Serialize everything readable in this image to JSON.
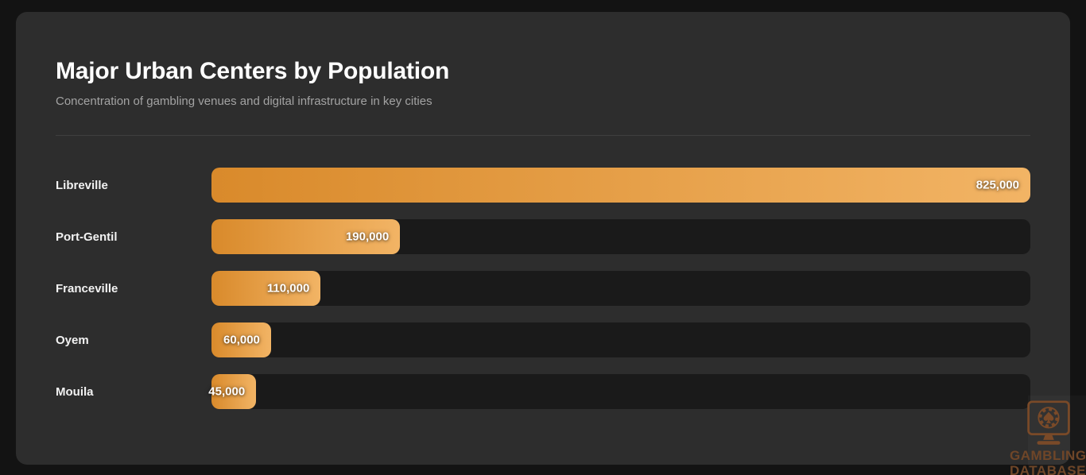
{
  "chart": {
    "title": "Major Urban Centers by Population",
    "subtitle": "Concentration of gambling venues and digital infrastructure in key cities"
  },
  "chart_data": {
    "type": "bar",
    "orientation": "horizontal",
    "categories": [
      "Libreville",
      "Port-Gentil",
      "Franceville",
      "Oyem",
      "Mouila"
    ],
    "values": [
      825000,
      190000,
      110000,
      60000,
      45000
    ],
    "value_labels": [
      "825,000",
      "190,000",
      "110,000",
      "60,000",
      "45,000"
    ],
    "title": "Major Urban Centers by Population",
    "subtitle": "Concentration of gambling venues and digital infrastructure in key cities",
    "xlabel": "",
    "ylabel": "",
    "xlim": [
      0,
      825000
    ],
    "grid": false,
    "legend": false,
    "bar_gradient": [
      "#d98a2b",
      "#f2b465"
    ],
    "track_color": "#1a1a1a"
  },
  "watermark": {
    "line1": "GAMBLING",
    "line2": "DATABASES",
    "icon": "monitor-casino-chip-spade-icon",
    "color": "#6f4628"
  },
  "colors": {
    "page_bg": "#131313",
    "card_bg": "#2d2d2d",
    "divider": "#3f3f3f",
    "title_text": "#ffffff",
    "subtitle_text": "#a3a3a3",
    "label_text": "#f2f2f2",
    "value_text": "#ffffff"
  }
}
